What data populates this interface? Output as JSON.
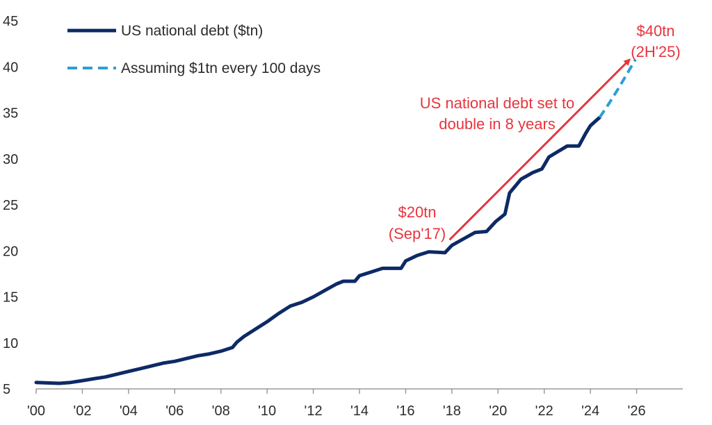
{
  "chart_data": {
    "type": "line",
    "title": "",
    "xlabel": "",
    "ylabel": "",
    "xlim": [
      2000,
      2028
    ],
    "ylim": [
      5,
      45
    ],
    "x_ticks": [
      2000,
      2002,
      2004,
      2006,
      2008,
      2010,
      2012,
      2014,
      2016,
      2018,
      2020,
      2022,
      2024,
      2026
    ],
    "x_tick_labels": [
      "'00",
      "'02",
      "'04",
      "'06",
      "'08",
      "'10",
      "'12",
      "'14",
      "'16",
      "'18",
      "'20",
      "'22",
      "'24",
      "'26"
    ],
    "y_ticks": [
      5,
      10,
      15,
      20,
      25,
      30,
      35,
      40,
      45
    ],
    "y_tick_labels": [
      "5",
      "10",
      "15",
      "20",
      "25",
      "30",
      "35",
      "40",
      "45"
    ],
    "grid": false,
    "legend_position": "top-left",
    "series": [
      {
        "name": "US national debt ($tn)",
        "color": "#0d2a66",
        "style": "solid",
        "points": [
          [
            2000.0,
            5.7
          ],
          [
            2000.5,
            5.65
          ],
          [
            2001.0,
            5.6
          ],
          [
            2001.5,
            5.7
          ],
          [
            2002.0,
            5.9
          ],
          [
            2002.5,
            6.1
          ],
          [
            2003.0,
            6.3
          ],
          [
            2003.5,
            6.6
          ],
          [
            2004.0,
            6.9
          ],
          [
            2004.5,
            7.2
          ],
          [
            2005.0,
            7.5
          ],
          [
            2005.5,
            7.8
          ],
          [
            2006.0,
            8.0
          ],
          [
            2006.5,
            8.3
          ],
          [
            2007.0,
            8.6
          ],
          [
            2007.5,
            8.8
          ],
          [
            2008.0,
            9.1
          ],
          [
            2008.5,
            9.5
          ],
          [
            2008.7,
            10.1
          ],
          [
            2009.0,
            10.7
          ],
          [
            2009.5,
            11.5
          ],
          [
            2010.0,
            12.3
          ],
          [
            2010.5,
            13.2
          ],
          [
            2011.0,
            14.0
          ],
          [
            2011.5,
            14.4
          ],
          [
            2012.0,
            15.0
          ],
          [
            2012.5,
            15.7
          ],
          [
            2013.0,
            16.4
          ],
          [
            2013.3,
            16.7
          ],
          [
            2013.8,
            16.7
          ],
          [
            2014.0,
            17.3
          ],
          [
            2014.5,
            17.7
          ],
          [
            2015.0,
            18.1
          ],
          [
            2015.8,
            18.1
          ],
          [
            2016.0,
            18.9
          ],
          [
            2016.5,
            19.5
          ],
          [
            2017.0,
            19.9
          ],
          [
            2017.7,
            19.8
          ],
          [
            2018.0,
            20.6
          ],
          [
            2018.5,
            21.3
          ],
          [
            2019.0,
            22.0
          ],
          [
            2019.5,
            22.1
          ],
          [
            2019.9,
            23.2
          ],
          [
            2020.3,
            24.0
          ],
          [
            2020.5,
            26.3
          ],
          [
            2021.0,
            27.8
          ],
          [
            2021.5,
            28.5
          ],
          [
            2021.9,
            28.9
          ],
          [
            2022.2,
            30.2
          ],
          [
            2022.6,
            30.8
          ],
          [
            2023.0,
            31.4
          ],
          [
            2023.5,
            31.4
          ],
          [
            2023.8,
            32.8
          ],
          [
            2024.0,
            33.6
          ],
          [
            2024.4,
            34.5
          ]
        ]
      },
      {
        "name": "Assuming $1tn every 100 days",
        "color": "#2a9fd6",
        "style": "dashed",
        "points": [
          [
            2024.4,
            34.5
          ],
          [
            2024.8,
            36.0
          ],
          [
            2025.2,
            37.6
          ],
          [
            2025.6,
            39.3
          ],
          [
            2025.95,
            40.8
          ]
        ]
      }
    ],
    "annotations": [
      {
        "lines": [
          "$20tn",
          "(Sep'17)"
        ],
        "x": 2017.75,
        "y": 20.0
      },
      {
        "lines": [
          "US national debt set to",
          "double in 8 years"
        ]
      },
      {
        "lines": [
          "$40tn",
          "(2H'25)"
        ],
        "x": 2025.75,
        "y": 40.0
      }
    ],
    "arrow": {
      "from": [
        2017.9,
        21.2
      ],
      "to": [
        2025.7,
        40.8
      ],
      "color": "#e8343d"
    }
  }
}
